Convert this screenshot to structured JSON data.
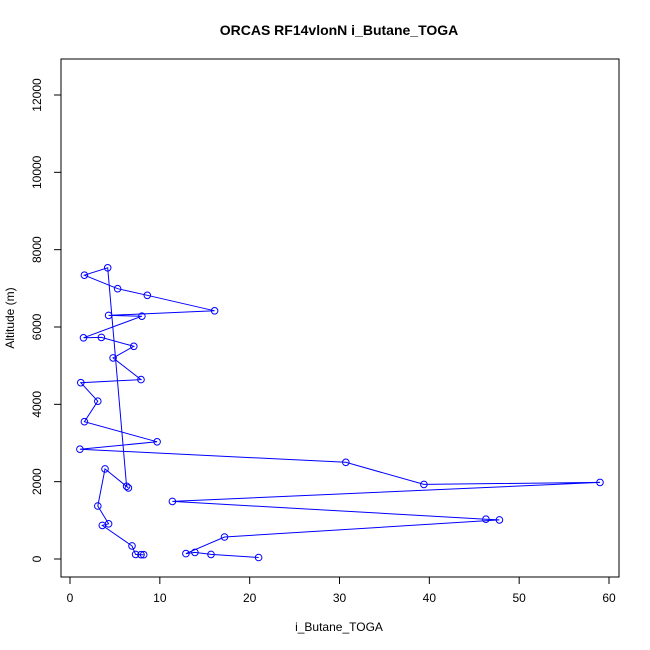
{
  "chart_data": {
    "type": "line",
    "title": "ORCAS RF14vlonN i_Butane_TOGA",
    "xlabel": "i_Butane_TOGA",
    "ylabel": "Altitude (m)",
    "xlim": [
      0,
      60
    ],
    "ylim": [
      0,
      12000
    ],
    "xticks": [
      0,
      10,
      20,
      30,
      40,
      50,
      60
    ],
    "yticks": [
      0,
      2000,
      4000,
      6000,
      8000,
      10000,
      12000
    ],
    "grid": false,
    "legend": "none",
    "color": "#0000ff",
    "series": [
      {
        "x": [
          21.0,
          15.7,
          13.9,
          12.9,
          17.2,
          47.8,
          46.3,
          11.4,
          59.0,
          39.4,
          30.7,
          1.1,
          9.7,
          1.6,
          3.1,
          1.2,
          7.9,
          4.8,
          7.1,
          3.5,
          1.5,
          8.0,
          4.3,
          16.1,
          8.6,
          5.3,
          1.6,
          4.2,
          6.3,
          6.5,
          3.9,
          3.1,
          4.3,
          3.6,
          6.9,
          7.3,
          7.9,
          8.2
        ],
        "y": [
          40,
          120,
          170,
          140,
          570,
          1010,
          1030,
          1490,
          1980,
          1930,
          2500,
          2840,
          3030,
          3550,
          4080,
          4560,
          4640,
          5200,
          5500,
          5730,
          5720,
          6280,
          6300,
          6420,
          6820,
          6990,
          7340,
          7530,
          1880,
          1840,
          2330,
          1370,
          910,
          870,
          340,
          120,
          110,
          110
        ]
      }
    ]
  }
}
